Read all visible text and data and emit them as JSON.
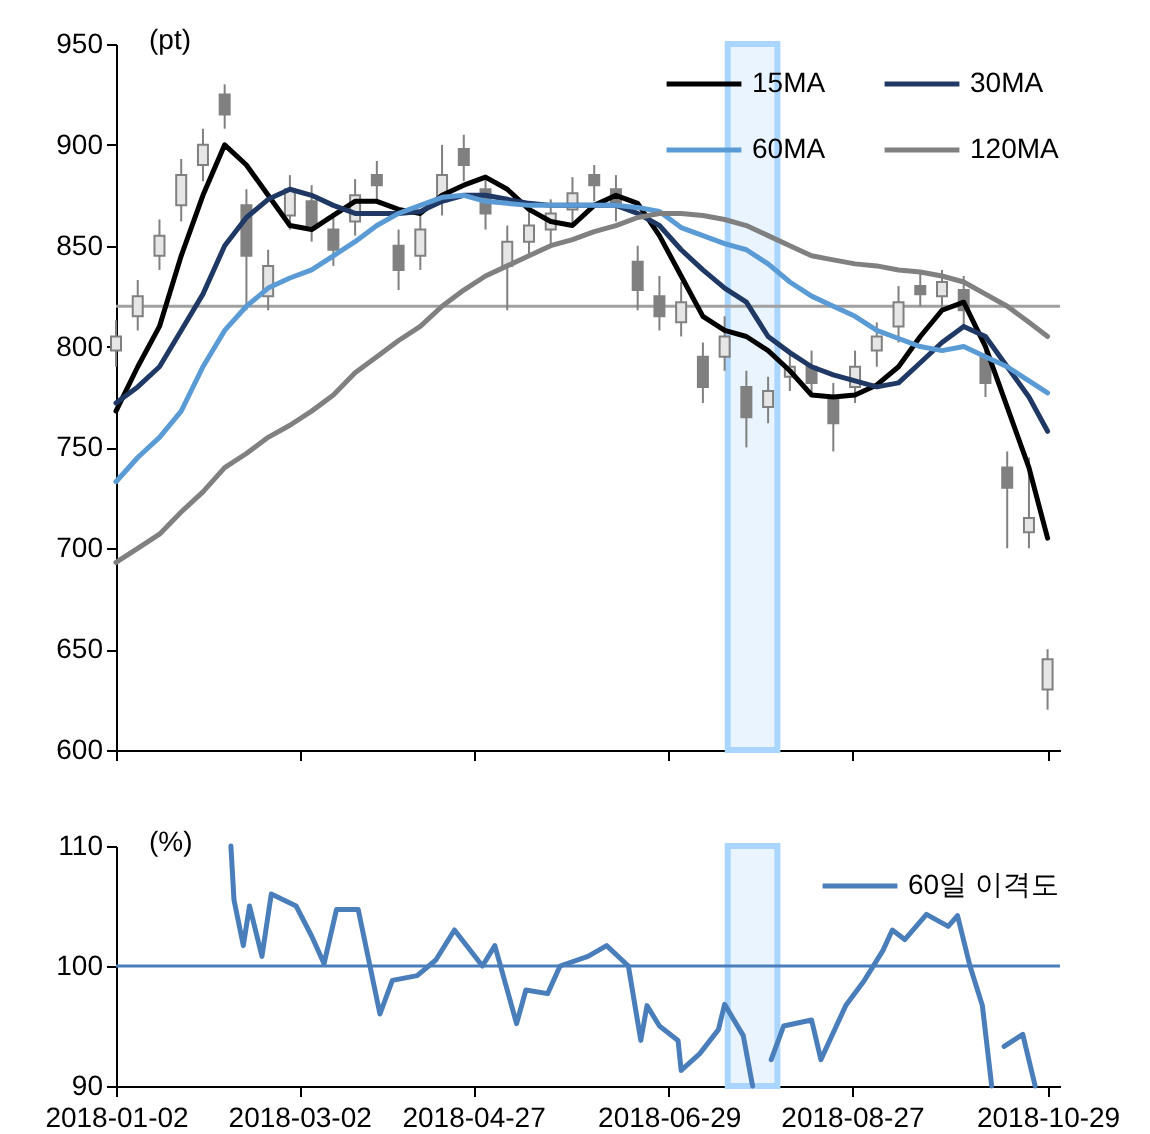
{
  "chart_data": [
    {
      "type": "candlestick",
      "ylabel": "(pt)",
      "legend": "top right",
      "tick_labels": "y",
      "xlim": [
        "2018-01-02",
        "2018-11-02"
      ],
      "xticks": [
        "2018-01-02",
        "2018-03-02",
        "2018-04-27",
        "2018-06-29",
        "2018-08-27",
        "2018-10-29"
      ],
      "ylim": [
        600,
        950
      ],
      "yticks": [
        600,
        650,
        700,
        750,
        800,
        850,
        900,
        950
      ],
      "ref_lines": [
        {
          "axis": "y",
          "value": 820,
          "color": "#a0a0a0"
        }
      ],
      "bands": [
        {
          "axis": "x",
          "from": "2018-07-18",
          "to": "2018-08-03",
          "color": "#a9d5ff"
        }
      ],
      "x": [
        "2018-01-02",
        "2018-01-09",
        "2018-01-16",
        "2018-01-23",
        "2018-01-30",
        "2018-02-06",
        "2018-02-13",
        "2018-02-20",
        "2018-02-27",
        "2018-03-06",
        "2018-03-13",
        "2018-03-20",
        "2018-03-27",
        "2018-04-03",
        "2018-04-10",
        "2018-04-17",
        "2018-04-24",
        "2018-05-01",
        "2018-05-08",
        "2018-05-15",
        "2018-05-22",
        "2018-05-29",
        "2018-06-05",
        "2018-06-12",
        "2018-06-19",
        "2018-06-26",
        "2018-07-03",
        "2018-07-10",
        "2018-07-17",
        "2018-07-24",
        "2018-07-31",
        "2018-08-07",
        "2018-08-14",
        "2018-08-21",
        "2018-08-28",
        "2018-09-04",
        "2018-09-11",
        "2018-09-18",
        "2018-09-25",
        "2018-10-02",
        "2018-10-09",
        "2018-10-16",
        "2018-10-23",
        "2018-10-29"
      ],
      "series": [
        {
          "color": "#808080",
          "ohlc": [
            [
              798,
              813,
              790,
              805
            ],
            [
              815,
              833,
              808,
              825
            ],
            [
              845,
              863,
              838,
              855
            ],
            [
              870,
              893,
              862,
              885
            ],
            [
              890,
              908,
              882,
              900
            ],
            [
              925,
              930,
              908,
              915
            ],
            [
              870,
              878,
              818,
              845
            ],
            [
              825,
              848,
              818,
              840
            ],
            [
              865,
              885,
              858,
              878
            ],
            [
              872,
              880,
              852,
              860
            ],
            [
              858,
              865,
              840,
              848
            ],
            [
              862,
              883,
              855,
              875
            ],
            [
              885,
              892,
              872,
              880
            ],
            [
              850,
              858,
              828,
              838
            ],
            [
              845,
              865,
              838,
              858
            ],
            [
              872,
              900,
              865,
              885
            ],
            [
              898,
              905,
              882,
              890
            ],
            [
              878,
              885,
              858,
              866
            ],
            [
              840,
              860,
              818,
              852
            ],
            [
              852,
              868,
              845,
              860
            ],
            [
              858,
              873,
              850,
              866
            ],
            [
              868,
              884,
              860,
              876
            ],
            [
              885,
              890,
              872,
              880
            ],
            [
              878,
              885,
              862,
              870
            ],
            [
              842,
              850,
              818,
              828
            ],
            [
              825,
              835,
              808,
              815
            ],
            [
              812,
              832,
              805,
              822
            ],
            [
              795,
              802,
              772,
              780
            ],
            [
              795,
              815,
              788,
              805
            ],
            [
              780,
              788,
              750,
              765
            ],
            [
              770,
              785,
              762,
              778
            ],
            [
              785,
              798,
              778,
              790
            ],
            [
              790,
              798,
              775,
              782
            ],
            [
              775,
              782,
              748,
              762
            ],
            [
              780,
              798,
              772,
              790
            ],
            [
              798,
              812,
              790,
              805
            ],
            [
              810,
              830,
              802,
              822
            ],
            [
              830,
              836,
              820,
              826
            ],
            [
              825,
              838,
              818,
              832
            ],
            [
              828,
              835,
              810,
              818
            ],
            [
              795,
              802,
              775,
              782
            ],
            [
              740,
              748,
              700,
              730
            ],
            [
              708,
              745,
              700,
              715
            ],
            [
              630,
              650,
              620,
              645
            ]
          ]
        },
        {
          "type": "line",
          "name": "15MA",
          "color": "#000000",
          "values": [
            768,
            790,
            810,
            845,
            875,
            900,
            890,
            875,
            860,
            858,
            865,
            872,
            872,
            868,
            866,
            875,
            880,
            884,
            878,
            868,
            862,
            860,
            870,
            875,
            871,
            855,
            835,
            815,
            808,
            805,
            798,
            788,
            776,
            775,
            776,
            781,
            790,
            805,
            818,
            822,
            800,
            770,
            740,
            705
          ]
        },
        {
          "type": "line",
          "name": "30MA",
          "color": "#1f3864",
          "values": [
            772,
            780,
            790,
            808,
            826,
            850,
            864,
            873,
            878,
            875,
            870,
            866,
            866,
            866,
            867,
            872,
            875,
            875,
            873,
            871,
            870,
            870,
            870,
            870,
            866,
            860,
            848,
            838,
            829,
            822,
            805,
            797,
            790,
            786,
            783,
            780,
            782,
            792,
            802,
            810,
            805,
            790,
            775,
            758
          ]
        },
        {
          "type": "line",
          "name": "60MA",
          "color": "#5b9bd5",
          "values": [
            733,
            745,
            755,
            768,
            790,
            808,
            820,
            829,
            834,
            838,
            845,
            852,
            860,
            866,
            870,
            874,
            875,
            872,
            871,
            870,
            870,
            870,
            870,
            870,
            869,
            867,
            859,
            855,
            851,
            848,
            841,
            832,
            825,
            820,
            815,
            808,
            804,
            800,
            798,
            800,
            795,
            790,
            783,
            777
          ]
        },
        {
          "type": "line",
          "name": "120MA",
          "color": "#808080",
          "values": [
            693,
            700,
            707,
            718,
            728,
            740,
            747,
            755,
            761,
            768,
            776,
            787,
            795,
            803,
            810,
            820,
            828,
            835,
            840,
            845,
            850,
            853,
            857,
            860,
            864,
            866,
            866,
            865,
            863,
            860,
            855,
            850,
            845,
            843,
            841,
            840,
            838,
            837,
            835,
            832,
            826,
            820,
            812,
            805
          ]
        }
      ]
    },
    {
      "type": "line",
      "ylabel": "(%)",
      "legend": "top right",
      "xlim": [
        "2018-01-02",
        "2018-11-02"
      ],
      "xticks": [
        "2018-01-02",
        "2018-03-02",
        "2018-04-27",
        "2018-06-29",
        "2018-08-27",
        "2018-10-29"
      ],
      "ylim": [
        90,
        110
      ],
      "yticks": [
        90,
        100,
        110
      ],
      "ref_lines": [
        {
          "axis": "y",
          "value": 100,
          "color": "#4a7ebb"
        }
      ],
      "bands": [
        {
          "axis": "x",
          "from": "2018-07-18",
          "to": "2018-08-03",
          "color": "#a9d5ff"
        }
      ],
      "x": [
        "2018-02-08",
        "2018-02-09",
        "2018-02-12",
        "2018-02-14",
        "2018-02-18",
        "2018-02-21",
        "2018-03-01",
        "2018-03-06",
        "2018-03-10",
        "2018-03-14",
        "2018-03-21",
        "2018-03-28",
        "2018-04-01",
        "2018-04-09",
        "2018-04-15",
        "2018-04-21",
        "2018-04-30",
        "2018-05-04",
        "2018-05-11",
        "2018-05-14",
        "2018-05-21",
        "2018-05-25",
        "2018-06-03",
        "2018-06-09",
        "2018-06-16",
        "2018-06-20",
        "2018-06-22",
        "2018-06-26",
        "2018-07-02",
        "2018-07-03",
        "2018-07-09",
        "2018-07-15",
        "2018-07-17",
        "2018-07-23",
        "2018-07-26",
        "2018-07-29",
        "2018-08-01",
        "2018-08-05",
        "2018-08-14",
        "2018-08-17",
        "2018-08-25",
        "2018-08-31",
        "2018-09-06",
        "2018-09-09",
        "2018-09-13",
        "2018-09-20",
        "2018-09-27",
        "2018-09-30",
        "2018-10-04",
        "2018-10-08",
        "2018-10-11",
        "2018-10-13",
        "2018-10-15",
        "2018-10-21",
        "2018-10-25"
      ],
      "series": [
        {
          "name": "60일 이격도",
          "color": "#4a7ebb",
          "values": [
            110,
            105.5,
            101.7,
            105,
            100.8,
            106,
            105,
            102.5,
            100.2,
            104.7,
            104.7,
            96,
            98.8,
            99.2,
            100.5,
            103,
            100,
            101.7,
            95.2,
            98,
            97.7,
            100,
            100.8,
            101.7,
            100,
            93.8,
            96.7,
            95,
            93.8,
            91.3,
            92.7,
            94.7,
            96.8,
            94.2,
            90,
            null,
            92.2,
            95,
            95.5,
            92.2,
            96.7,
            98.8,
            101.3,
            103,
            102.2,
            104.3,
            103.3,
            104.2,
            100,
            96.7,
            90,
            null,
            93.3,
            94.3,
            90
          ]
        }
      ]
    }
  ]
}
